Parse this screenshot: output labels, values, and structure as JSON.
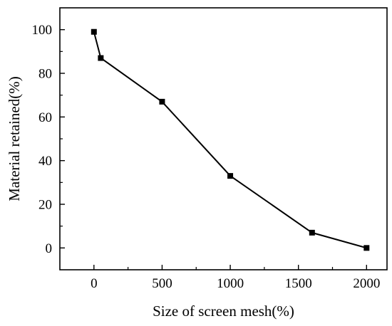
{
  "chart_data": {
    "type": "line",
    "title": "",
    "xlabel": "Size of screen mesh(%)",
    "ylabel": "Material retained(%)",
    "xlim": [
      -250,
      2150
    ],
    "ylim": [
      -10,
      110
    ],
    "xticks": [
      0,
      500,
      1000,
      1500,
      2000
    ],
    "yticks": [
      0,
      20,
      40,
      60,
      80,
      100
    ],
    "xtick_labels": [
      "0",
      "500",
      "1000",
      "1500",
      "2000"
    ],
    "ytick_labels": [
      "0",
      "20",
      "40",
      "60",
      "80",
      "100"
    ],
    "grid": false,
    "legend": false,
    "line_color": "#000000",
    "marker": "square",
    "series": [
      {
        "x": [
          0,
          50,
          500,
          1000,
          1600,
          2000
        ],
        "y": [
          99,
          87,
          67,
          33,
          7,
          0
        ]
      }
    ]
  }
}
